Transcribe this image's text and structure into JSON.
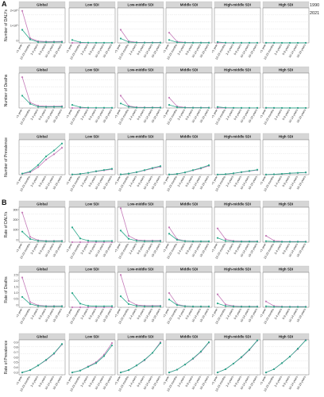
{
  "figure": {
    "section_labels": [
      "A",
      "B"
    ]
  },
  "legend": {
    "entries": [
      {
        "name": "1990",
        "color": "#c47ab8"
      },
      {
        "name": "2021",
        "color": "#2aa88a"
      }
    ]
  },
  "colors": {
    "strip": "#d6d6d6",
    "grid": "#e6e6e6",
    "frame": "#555555",
    "y1990": "#c47ab8",
    "y2021": "#2aa88a"
  },
  "chart_data": {
    "type": "line",
    "panels": [
      "Global",
      "Low SDI",
      "Low-middle SDI",
      "Middle SDI",
      "High-middle SDI",
      "High SDI"
    ],
    "x": [
      "<1 year",
      "12-23 months",
      "2-4 years",
      "5-9 years",
      "10-14 years",
      "15-19 years"
    ],
    "rows": [
      {
        "ylabel": "Number of DALYs",
        "yticks": [
          "2×10⁶",
          "1×10⁶",
          "0"
        ],
        "ylim": [
          0,
          2400000
        ],
        "series": {
          "1990": [
            [
              2200000,
              320000,
              120000,
              90000,
              90000,
              100000
            ],
            [
              0,
              0,
              0,
              0,
              0,
              0
            ],
            [
              900000,
              120000,
              40000,
              30000,
              30000,
              30000
            ],
            [
              700000,
              90000,
              30000,
              20000,
              20000,
              20000
            ],
            [
              0,
              0,
              0,
              0,
              0,
              0
            ],
            [
              0,
              0,
              0,
              0,
              0,
              0
            ]
          ],
          "2021": [
            [
              900000,
              240000,
              60000,
              50000,
              55000,
              60000
            ],
            [
              200000,
              40000,
              15000,
              10000,
              10000,
              10000
            ],
            [
              300000,
              60000,
              20000,
              15000,
              15000,
              15000
            ],
            [
              200000,
              40000,
              15000,
              10000,
              10000,
              10000
            ],
            [
              60000,
              15000,
              8000,
              6000,
              6000,
              6000
            ],
            [
              10000,
              5000,
              3000,
              3000,
              3000,
              3000
            ]
          ]
        }
      },
      {
        "ylabel": "Number of Deaths",
        "yticks": [],
        "ylim": [
          0,
          1700
        ],
        "series": {
          "1990": [
            [
              1500,
              260,
              110,
              80,
              80,
              90
            ],
            [
              0,
              0,
              0,
              0,
              0,
              0
            ],
            [
              600,
              100,
              40,
              30,
              30,
              30
            ],
            [
              500,
              80,
              30,
              20,
              20,
              20
            ],
            [
              0,
              0,
              0,
              0,
              0,
              0
            ],
            [
              0,
              0,
              0,
              0,
              0,
              0
            ]
          ],
          "2021": [
            [
              600,
              200,
              60,
              50,
              55,
              60
            ],
            [
              150,
              40,
              15,
              10,
              10,
              10
            ],
            [
              220,
              60,
              20,
              15,
              15,
              15
            ],
            [
              150,
              40,
              15,
              10,
              10,
              10
            ],
            [
              50,
              15,
              8,
              6,
              6,
              6
            ],
            [
              10,
              5,
              3,
              3,
              3,
              3
            ]
          ]
        }
      },
      {
        "ylabel": "Number of Prevalence",
        "yticks": [],
        "ylim": [
          0,
          6500
        ],
        "series": {
          "1990": [
            [
              150,
              450,
              1400,
              2800,
              3800,
              5000
            ],
            [
              40,
              150,
              350,
              600,
              800,
              1000
            ],
            [
              60,
              200,
              450,
              800,
              1150,
              1450
            ],
            [
              40,
              150,
              400,
              800,
              1150,
              1650
            ],
            [
              30,
              100,
              250,
              450,
              650,
              850
            ],
            [
              20,
              70,
              150,
              250,
              320,
              400
            ]
          ],
          "2021": [
            [
              200,
              600,
              1800,
              3400,
              4500,
              5800
            ],
            [
              40,
              150,
              350,
              650,
              880,
              1100
            ],
            [
              60,
              200,
              480,
              850,
              1250,
              1600
            ],
            [
              40,
              150,
              420,
              850,
              1250,
              1750
            ],
            [
              30,
              100,
              260,
              480,
              700,
              920
            ],
            [
              20,
              70,
              160,
              270,
              340,
              420
            ]
          ]
        }
      },
      {
        "ylabel": "Rate of DALYs",
        "yticks": [
          "300",
          "200",
          "100",
          "0"
        ],
        "ylim": [
          0,
          330
        ],
        "series": {
          "1990": [
            [
              280,
              50,
              18,
              12,
              12,
              13
            ],
            [
              0,
              0,
              0,
              0,
              0,
              0
            ],
            [
              320,
              60,
              22,
              15,
              15,
              15
            ],
            [
              140,
              28,
              12,
              9,
              9,
              9
            ],
            [
              130,
              28,
              12,
              9,
              9,
              9
            ],
            [
              60,
              15,
              7,
              6,
              6,
              6
            ]
          ],
          "2021": [
            [
              100,
              30,
              12,
              9,
              9,
              10
            ],
            [
              140,
              35,
              14,
              10,
              10,
              11
            ],
            [
              110,
              32,
              13,
              9,
              9,
              10
            ],
            [
              80,
              22,
              10,
              8,
              8,
              8
            ],
            [
              40,
              12,
              7,
              6,
              6,
              6
            ],
            [
              10,
              5,
              4,
              4,
              4,
              4
            ]
          ]
        }
      },
      {
        "ylabel": "Rate of Deaths",
        "yticks": [
          "2.5",
          "2.0",
          "1.5",
          "1.0",
          "0.5",
          "0"
        ],
        "ylim": [
          0,
          2.7
        ],
        "series": {
          "1990": [
            [
              2.3,
              0.4,
              0.15,
              0.1,
              0.1,
              0.1
            ],
            [
              0,
              0,
              0,
              0,
              0,
              0
            ],
            [
              2.5,
              0.5,
              0.18,
              0.12,
              0.12,
              0.12
            ],
            [
              1.1,
              0.22,
              0.1,
              0.07,
              0.07,
              0.07
            ],
            [
              1.0,
              0.22,
              0.1,
              0.07,
              0.07,
              0.07
            ],
            [
              0.45,
              0.1,
              0.06,
              0.05,
              0.05,
              0.05
            ]
          ],
          "2021": [
            [
              0.8,
              0.25,
              0.1,
              0.07,
              0.07,
              0.08
            ],
            [
              1.1,
              0.28,
              0.11,
              0.08,
              0.08,
              0.09
            ],
            [
              0.85,
              0.25,
              0.1,
              0.07,
              0.07,
              0.08
            ],
            [
              0.6,
              0.17,
              0.08,
              0.06,
              0.06,
              0.06
            ],
            [
              0.3,
              0.1,
              0.06,
              0.05,
              0.05,
              0.05
            ],
            [
              0.08,
              0.04,
              0.03,
              0.03,
              0.03,
              0.03
            ]
          ]
        }
      },
      {
        "ylabel": "Rate of Prevalence",
        "yticks": [
          "0.9",
          "0.8",
          "0.7",
          "0.6",
          "0.5",
          "0.4",
          "0.3"
        ],
        "ylim": [
          0.25,
          1.0
        ],
        "series": {
          "1990": [
            [
              0.3,
              0.35,
              0.45,
              0.56,
              0.7,
              0.9
            ],
            [
              0.3,
              0.34,
              0.43,
              0.52,
              0.68,
              0.93
            ],
            [
              0.3,
              0.35,
              0.45,
              0.56,
              0.72,
              0.95
            ],
            [
              0.3,
              0.36,
              0.47,
              0.59,
              0.74,
              0.94
            ],
            [
              0.3,
              0.37,
              0.49,
              0.62,
              0.78,
              0.98
            ],
            [
              0.3,
              0.37,
              0.5,
              0.64,
              0.8,
              1.0
            ]
          ],
          "2021": [
            [
              0.3,
              0.35,
              0.45,
              0.57,
              0.71,
              0.91
            ],
            [
              0.3,
              0.34,
              0.42,
              0.5,
              0.65,
              0.88
            ],
            [
              0.3,
              0.35,
              0.45,
              0.57,
              0.72,
              0.93
            ],
            [
              0.3,
              0.36,
              0.47,
              0.6,
              0.75,
              0.95
            ],
            [
              0.3,
              0.37,
              0.49,
              0.63,
              0.79,
              0.99
            ],
            [
              0.3,
              0.37,
              0.5,
              0.64,
              0.81,
              0.99
            ]
          ]
        }
      }
    ]
  }
}
